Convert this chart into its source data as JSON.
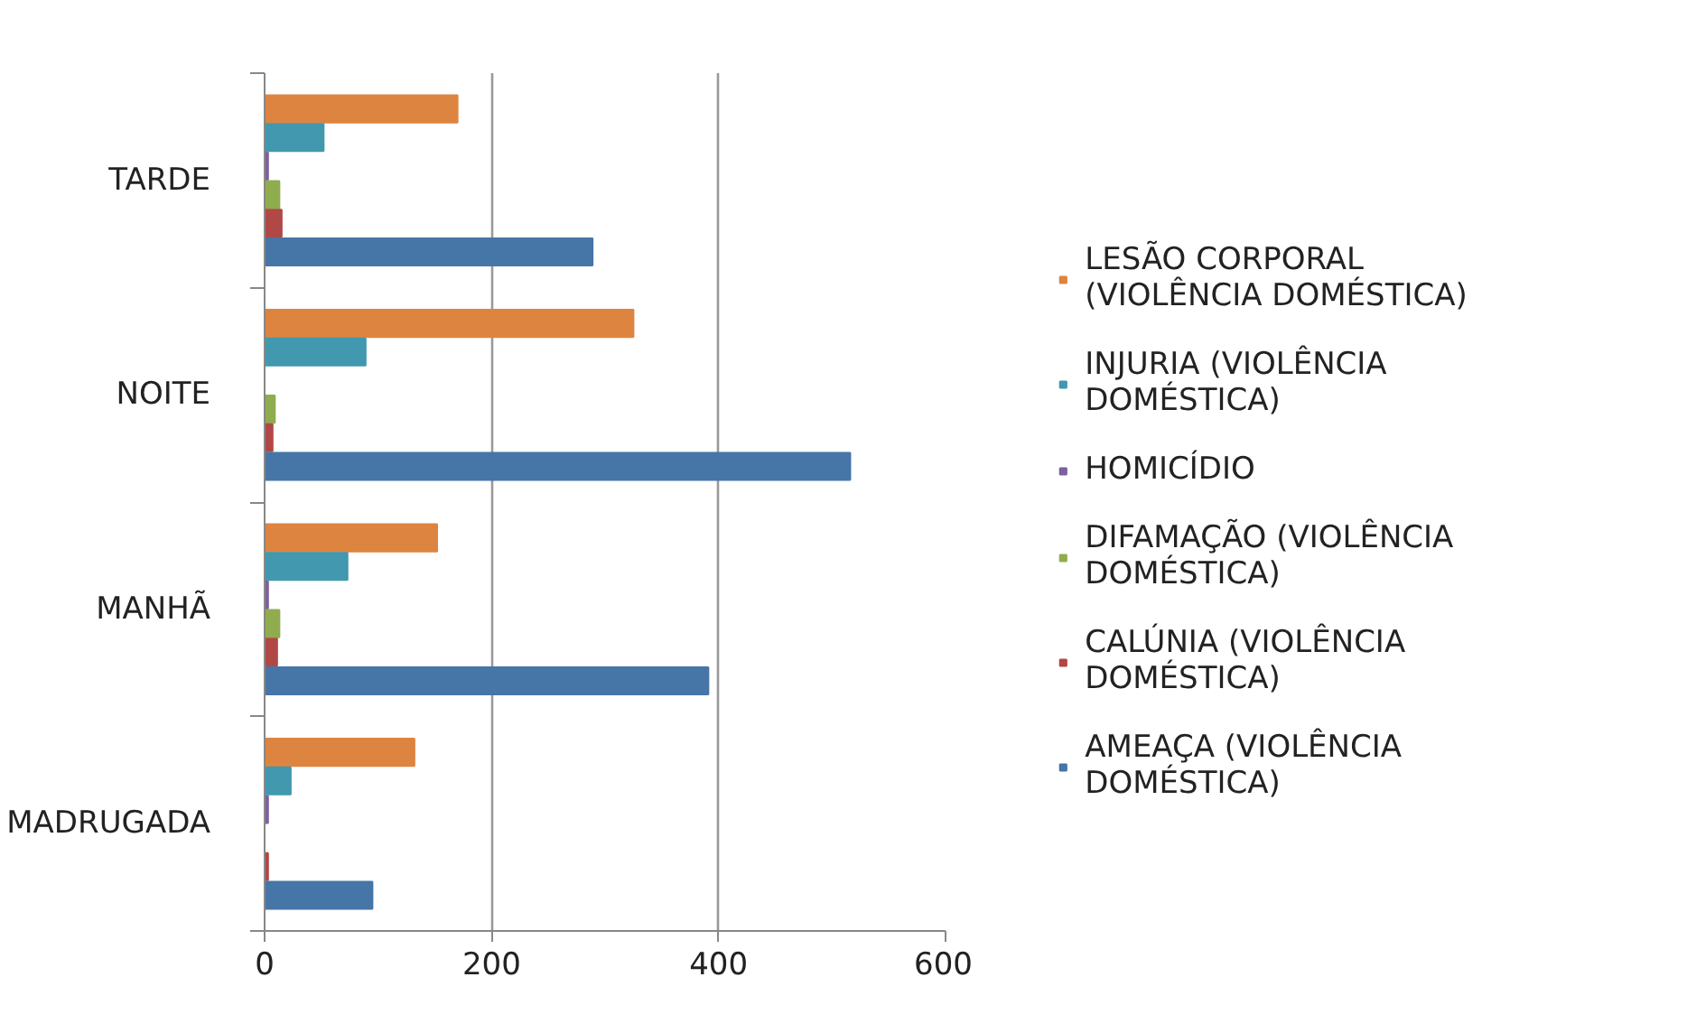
{
  "chart_data": {
    "type": "bar",
    "orientation": "horizontal",
    "categories": [
      "TARDE",
      "NOITE",
      "MANHÃ",
      "MADRUGADA"
    ],
    "series": [
      {
        "name": "LESÃO CORPORAL (VIOLÊNCIA DOMÉSTICA)",
        "color": "#dd8540",
        "values": [
          170,
          325,
          152,
          132
        ]
      },
      {
        "name": "INJURIA (VIOLÊNCIA DOMÉSTICA)",
        "color": "#4198af",
        "values": [
          52,
          89,
          73,
          23
        ]
      },
      {
        "name": "HOMICÍDIO",
        "color": "#7d60a0",
        "values": [
          3,
          0,
          3,
          3
        ]
      },
      {
        "name": "DIFAMAÇÃO (VIOLÊNCIA DOMÉSTICA)",
        "color": "#8fad4e",
        "values": [
          13,
          9,
          13,
          0
        ]
      },
      {
        "name": "CALÚNIA (VIOLÊNCIA DOMÉSTICA)",
        "color": "#b04845",
        "values": [
          15,
          7,
          11,
          3
        ]
      },
      {
        "name": "AMEAÇA (VIOLÊNCIA DOMÉSTICA)",
        "color": "#4675a8",
        "values": [
          289,
          516,
          391,
          95
        ]
      }
    ],
    "xlim": [
      0,
      600
    ],
    "xticks": [
      0,
      200,
      400,
      600
    ],
    "grid": "x",
    "legend": "right"
  }
}
